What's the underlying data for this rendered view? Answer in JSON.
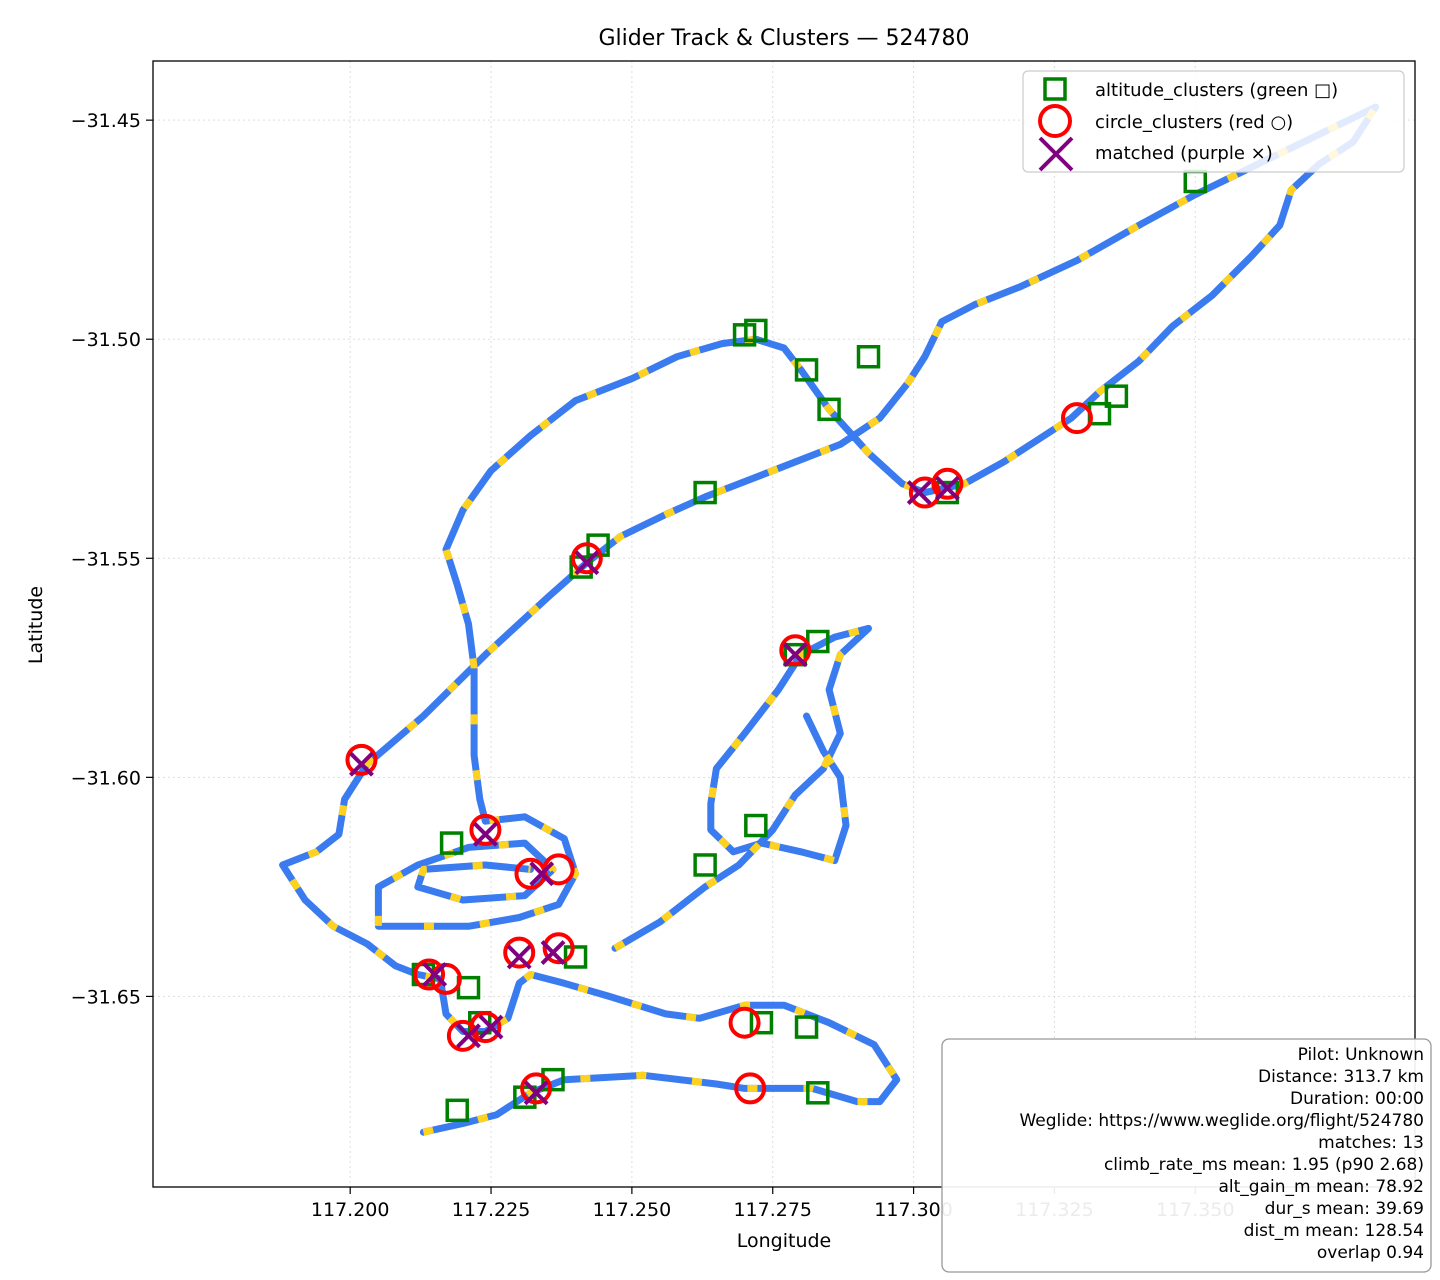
{
  "chart_data": {
    "type": "scatter",
    "title": "Glider Track & Clusters — 524780",
    "xlabel": "Longitude",
    "ylabel": "Latitude",
    "xlim": [
      117.165,
      117.389
    ],
    "ylim": [
      -31.6935,
      -31.4365
    ],
    "xticks": [
      117.2,
      117.225,
      117.25,
      117.275,
      117.3,
      117.325,
      117.35
    ],
    "xtick_labels": [
      "117.200",
      "117.225",
      "117.250",
      "117.275",
      "117.300",
      "117.325",
      "117.350"
    ],
    "yticks": [
      -31.45,
      -31.5,
      -31.55,
      -31.6,
      -31.65
    ],
    "ytick_labels": [
      "−31.45",
      "−31.50",
      "−31.55",
      "−31.60",
      "−31.65"
    ],
    "grid": true,
    "legend_position": "top-right",
    "colors": {
      "track_blue": "#3b7bf0",
      "track_yellow": "#ffd21f",
      "altitude": "#008000",
      "circle": "#ff0000",
      "matched": "#800080"
    },
    "series": [
      {
        "name": "track",
        "points": [
          [
            117.213,
            -31.681
          ],
          [
            117.22,
            -31.679
          ],
          [
            117.226,
            -31.677
          ],
          [
            117.232,
            -31.672
          ],
          [
            117.238,
            -31.669
          ],
          [
            117.252,
            -31.668
          ],
          [
            117.265,
            -31.67
          ],
          [
            117.27,
            -31.671
          ],
          [
            117.276,
            -31.671
          ],
          [
            117.282,
            -31.671
          ],
          [
            117.29,
            -31.674
          ],
          [
            117.294,
            -31.674
          ],
          [
            117.297,
            -31.669
          ],
          [
            117.293,
            -31.661
          ],
          [
            117.285,
            -31.656
          ],
          [
            117.277,
            -31.652
          ],
          [
            117.27,
            -31.652
          ],
          [
            117.262,
            -31.655
          ],
          [
            117.256,
            -31.654
          ],
          [
            117.246,
            -31.65
          ],
          [
            117.238,
            -31.647
          ],
          [
            117.232,
            -31.645
          ],
          [
            117.23,
            -31.647
          ],
          [
            117.228,
            -31.655
          ],
          [
            117.224,
            -31.658
          ],
          [
            117.22,
            -31.658
          ],
          [
            117.217,
            -31.654
          ],
          [
            117.216,
            -31.646
          ],
          [
            117.212,
            -31.645
          ],
          [
            117.208,
            -31.643
          ],
          [
            117.203,
            -31.638
          ],
          [
            117.197,
            -31.634
          ],
          [
            117.192,
            -31.628
          ],
          [
            117.188,
            -31.62
          ],
          [
            117.194,
            -31.617
          ],
          [
            117.198,
            -31.613
          ],
          [
            117.199,
            -31.605
          ],
          [
            117.203,
            -31.597
          ],
          [
            117.213,
            -31.586
          ],
          [
            117.224,
            -31.572
          ],
          [
            117.235,
            -31.559
          ],
          [
            117.242,
            -31.551
          ],
          [
            117.248,
            -31.545
          ],
          [
            117.256,
            -31.54
          ],
          [
            117.263,
            -31.536
          ],
          [
            117.275,
            -31.53
          ],
          [
            117.287,
            -31.524
          ],
          [
            117.294,
            -31.518
          ],
          [
            117.299,
            -31.51
          ],
          [
            117.302,
            -31.504
          ],
          [
            117.305,
            -31.496
          ],
          [
            117.311,
            -31.492
          ],
          [
            117.319,
            -31.488
          ],
          [
            117.329,
            -31.482
          ],
          [
            117.34,
            -31.474
          ],
          [
            117.35,
            -31.467
          ],
          [
            117.358,
            -31.462
          ],
          [
            117.366,
            -31.457
          ],
          [
            117.374,
            -31.452
          ],
          [
            117.382,
            -31.447
          ],
          [
            117.378,
            -31.455
          ],
          [
            117.372,
            -31.46
          ],
          [
            117.367,
            -31.466
          ],
          [
            117.365,
            -31.474
          ],
          [
            117.36,
            -31.481
          ],
          [
            117.353,
            -31.49
          ],
          [
            117.346,
            -31.497
          ],
          [
            117.34,
            -31.505
          ],
          [
            117.333,
            -31.512
          ],
          [
            117.328,
            -31.518
          ],
          [
            117.322,
            -31.523
          ],
          [
            117.316,
            -31.528
          ],
          [
            117.309,
            -31.533
          ],
          [
            117.302,
            -31.535
          ],
          [
            117.298,
            -31.533
          ],
          [
            117.292,
            -31.526
          ],
          [
            117.285,
            -31.516
          ],
          [
            117.28,
            -31.507
          ],
          [
            117.277,
            -31.502
          ],
          [
            117.272,
            -31.5
          ],
          [
            117.266,
            -31.501
          ],
          [
            117.258,
            -31.504
          ],
          [
            117.25,
            -31.509
          ],
          [
            117.24,
            -31.514
          ],
          [
            117.232,
            -31.522
          ],
          [
            117.225,
            -31.53
          ],
          [
            117.22,
            -31.539
          ],
          [
            117.217,
            -31.548
          ],
          [
            117.219,
            -31.556
          ],
          [
            117.221,
            -31.565
          ],
          [
            117.222,
            -31.575
          ],
          [
            117.222,
            -31.585
          ],
          [
            117.222,
            -31.595
          ],
          [
            117.223,
            -31.605
          ],
          [
            117.224,
            -31.61
          ],
          [
            117.231,
            -31.609
          ],
          [
            117.238,
            -31.614
          ],
          [
            117.24,
            -31.622
          ],
          [
            117.237,
            -31.629
          ],
          [
            117.23,
            -31.632
          ],
          [
            117.221,
            -31.634
          ],
          [
            117.214,
            -31.634
          ],
          [
            117.205,
            -31.634
          ],
          [
            117.205,
            -31.625
          ],
          [
            117.212,
            -31.62
          ],
          [
            117.221,
            -31.616
          ],
          [
            117.231,
            -31.615
          ],
          [
            117.236,
            -31.621
          ],
          [
            117.231,
            -31.627
          ],
          [
            117.22,
            -31.628
          ],
          [
            117.212,
            -31.625
          ],
          [
            117.213,
            -31.621
          ],
          [
            117.224,
            -31.62
          ],
          [
            117.232,
            -31.621
          ]
        ]
      },
      {
        "name": "track-east",
        "points": [
          [
            117.247,
            -31.639
          ],
          [
            117.255,
            -31.633
          ],
          [
            117.263,
            -31.625
          ],
          [
            117.269,
            -31.62
          ],
          [
            117.275,
            -31.612
          ],
          [
            117.279,
            -31.604
          ],
          [
            117.284,
            -31.598
          ],
          [
            117.287,
            -31.59
          ],
          [
            117.285,
            -31.58
          ],
          [
            117.287,
            -31.572
          ],
          [
            117.292,
            -31.566
          ],
          [
            117.286,
            -31.568
          ],
          [
            117.28,
            -31.572
          ],
          [
            117.276,
            -31.58
          ],
          [
            117.27,
            -31.59
          ],
          [
            117.265,
            -31.598
          ],
          [
            117.264,
            -31.606
          ],
          [
            117.264,
            -31.612
          ],
          [
            117.268,
            -31.617
          ],
          [
            117.273,
            -31.615
          ],
          [
            117.28,
            -31.617
          ],
          [
            117.286,
            -31.619
          ],
          [
            117.288,
            -31.611
          ],
          [
            117.287,
            -31.6
          ],
          [
            117.284,
            -31.594
          ],
          [
            117.281,
            -31.586
          ]
        ]
      },
      {
        "name": "altitude_clusters (green □)",
        "marker": "square",
        "points": [
          [
            117.27,
            -31.499
          ],
          [
            117.272,
            -31.498
          ],
          [
            117.281,
            -31.507
          ],
          [
            117.285,
            -31.516
          ],
          [
            117.292,
            -31.504
          ],
          [
            117.263,
            -31.535
          ],
          [
            117.306,
            -31.535
          ],
          [
            117.336,
            -31.513
          ],
          [
            117.333,
            -31.517
          ],
          [
            117.35,
            -31.464
          ],
          [
            117.244,
            -31.547
          ],
          [
            117.241,
            -31.552
          ],
          [
            117.272,
            -31.611
          ],
          [
            117.263,
            -31.62
          ],
          [
            117.283,
            -31.569
          ],
          [
            117.279,
            -31.572
          ],
          [
            117.24,
            -31.641
          ],
          [
            117.218,
            -31.615
          ],
          [
            117.221,
            -31.648
          ],
          [
            117.236,
            -31.669
          ],
          [
            117.219,
            -31.676
          ],
          [
            117.231,
            -31.673
          ],
          [
            117.281,
            -31.657
          ],
          [
            117.283,
            -31.672
          ],
          [
            117.273,
            -31.656
          ],
          [
            117.223,
            -31.656
          ],
          [
            117.213,
            -31.645
          ]
        ]
      },
      {
        "name": "circle_clusters (red ○)",
        "marker": "circle",
        "points": [
          [
            117.202,
            -31.596
          ],
          [
            117.242,
            -31.55
          ],
          [
            117.279,
            -31.571
          ],
          [
            117.302,
            -31.535
          ],
          [
            117.306,
            -31.533
          ],
          [
            117.329,
            -31.518
          ],
          [
            117.224,
            -31.612
          ],
          [
            117.232,
            -31.622
          ],
          [
            117.237,
            -31.621
          ],
          [
            117.214,
            -31.645
          ],
          [
            117.217,
            -31.646
          ],
          [
            117.23,
            -31.64
          ],
          [
            117.237,
            -31.639
          ],
          [
            117.22,
            -31.659
          ],
          [
            117.224,
            -31.657
          ],
          [
            117.233,
            -31.671
          ],
          [
            117.27,
            -31.656
          ],
          [
            117.271,
            -31.671
          ]
        ]
      },
      {
        "name": "matched (purple ×)",
        "marker": "x",
        "points": [
          [
            117.202,
            -31.597
          ],
          [
            117.242,
            -31.551
          ],
          [
            117.279,
            -31.572
          ],
          [
            117.301,
            -31.535
          ],
          [
            117.306,
            -31.534
          ],
          [
            117.224,
            -31.613
          ],
          [
            117.234,
            -31.622
          ],
          [
            117.215,
            -31.645
          ],
          [
            117.23,
            -31.641
          ],
          [
            117.236,
            -31.64
          ],
          [
            117.221,
            -31.659
          ],
          [
            117.225,
            -31.657
          ],
          [
            117.233,
            -31.672
          ]
        ]
      }
    ],
    "legend": [
      {
        "label": "altitude_clusters (green □)",
        "marker": "square",
        "color": "#008000"
      },
      {
        "label": "circle_clusters (red ○)",
        "marker": "circle",
        "color": "#ff0000"
      },
      {
        "label": "matched (purple ×)",
        "marker": "x",
        "color": "#800080"
      }
    ],
    "info_box": [
      "Pilot: Unknown",
      "Distance: 313.7 km",
      "Duration: 00:00",
      "Weglide: https://www.weglide.org/flight/524780",
      "matches: 13",
      "climb_rate_ms mean: 1.95 (p90 2.68)",
      "alt_gain_m mean: 78.92",
      "dur_s mean: 39.69",
      "dist_m mean: 128.54",
      "overlap 0.94"
    ]
  }
}
